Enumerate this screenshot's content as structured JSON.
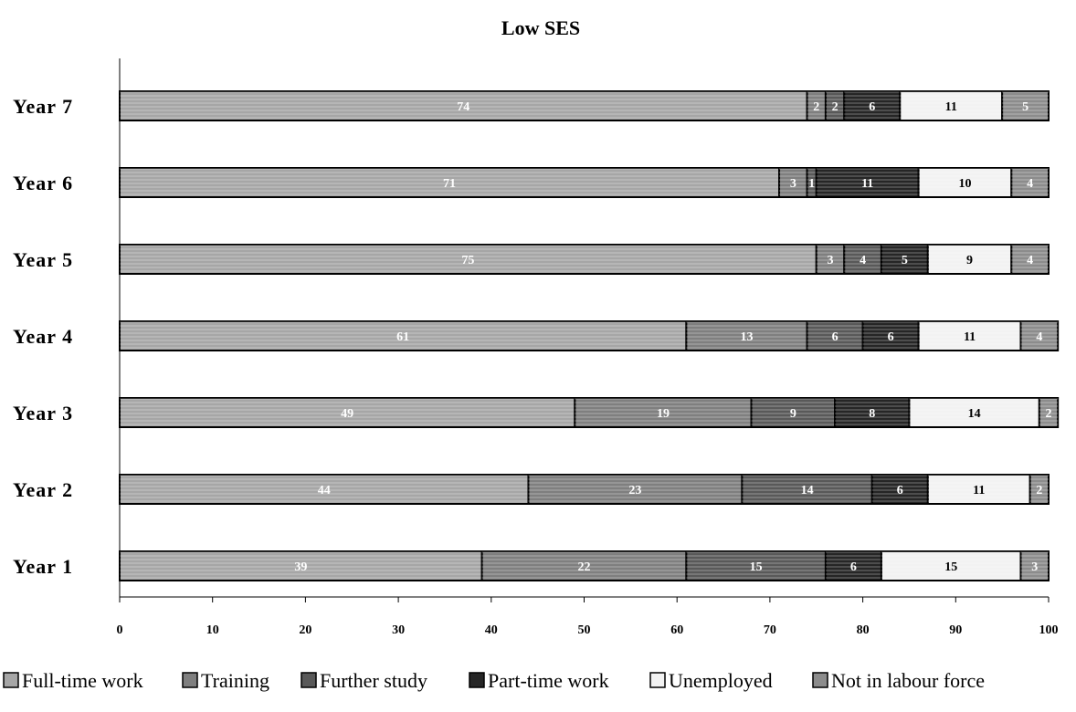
{
  "chart_data": {
    "type": "bar",
    "orientation": "horizontal",
    "stacked": true,
    "title": "Low SES",
    "categories": [
      "Year 7",
      "Year 6",
      "Year 5",
      "Year 4",
      "Year 3",
      "Year 2",
      "Year 1"
    ],
    "series": [
      {
        "name": "Full-time work",
        "color": "#a6a6a6",
        "label_color": "#ffffff",
        "values": [
          74,
          71,
          75,
          61,
          49,
          44,
          39
        ]
      },
      {
        "name": "Training",
        "color": "#7f7f7f",
        "label_color": "#ffffff",
        "values": [
          2,
          3,
          3,
          13,
          19,
          23,
          22
        ]
      },
      {
        "name": "Further study",
        "color": "#595959",
        "label_color": "#ffffff",
        "values": [
          2,
          1,
          4,
          6,
          9,
          14,
          15
        ]
      },
      {
        "name": "Part-time work",
        "color": "#262626",
        "label_color": "#ffffff",
        "values": [
          6,
          11,
          5,
          6,
          8,
          6,
          6
        ]
      },
      {
        "name": "Unemployed",
        "color": "#f2f2f2",
        "label_color": "#000000",
        "values": [
          11,
          10,
          9,
          11,
          14,
          11,
          15
        ]
      },
      {
        "name": "Not in labour force",
        "color": "#8c8c8c",
        "label_color": "#ffffff",
        "values": [
          5,
          4,
          4,
          4,
          2,
          2,
          3
        ]
      }
    ],
    "xlim": [
      0,
      100
    ],
    "xticks": [
      0,
      10,
      20,
      30,
      40,
      50,
      60,
      70,
      80,
      90,
      100
    ],
    "grid": false,
    "legend": "bottom"
  }
}
